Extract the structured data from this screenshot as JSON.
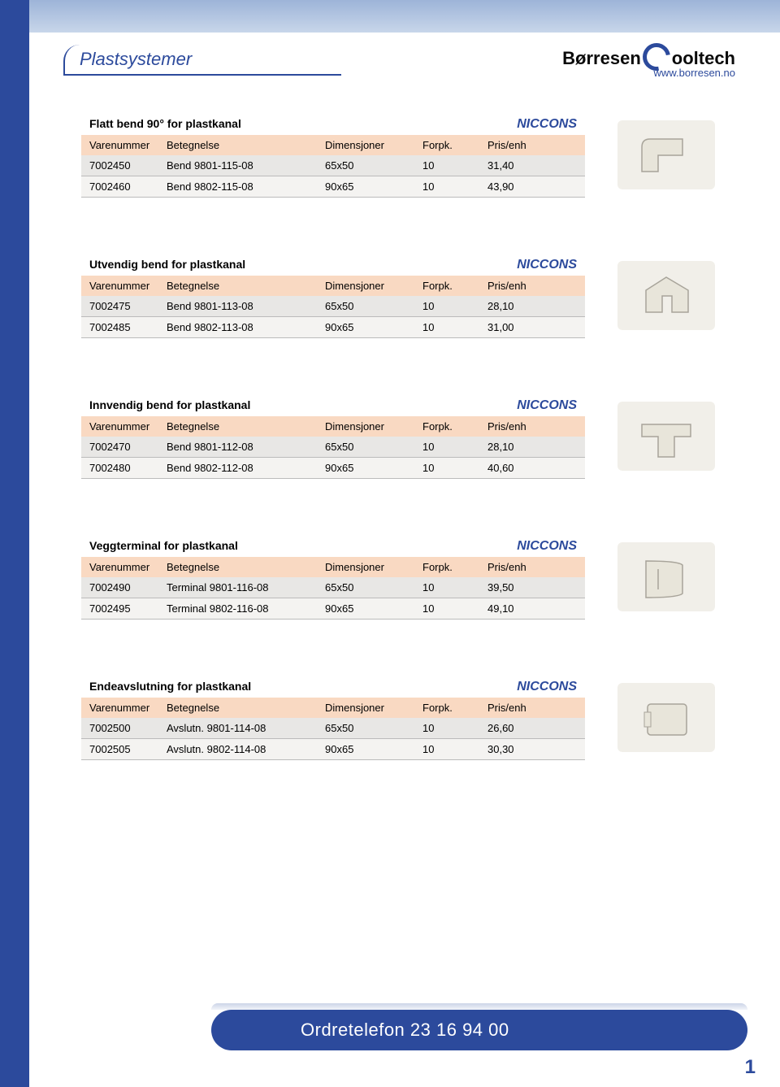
{
  "page": {
    "title": "Plastsystemer",
    "logo_left": "Børresen",
    "logo_right": "ooltech",
    "url": "www.borresen.no",
    "footer": "Ordretelefon 23 16 94 00",
    "page_number": "1"
  },
  "colors": {
    "accent": "#2c4a9c",
    "header_row": "#f9d9c2",
    "row_odd": "#e8e7e5",
    "row_even": "#f4f3f1"
  },
  "table_headers": {
    "varenummer": "Varenummer",
    "betegnelse": "Betegnelse",
    "dimensjoner": "Dimensjoner",
    "forpk": "Forpk.",
    "pris": "Pris/enh"
  },
  "sections": [
    {
      "title": "Flatt bend 90° for plastkanal",
      "brand": "NICCONS",
      "img_name": "flat-bend-icon",
      "rows": [
        [
          "7002450",
          "Bend 9801-115-08",
          "65x50",
          "10",
          "31,40"
        ],
        [
          "7002460",
          "Bend 9802-115-08",
          "90x65",
          "10",
          "43,90"
        ]
      ]
    },
    {
      "title": "Utvendig bend for plastkanal",
      "brand": "NICCONS",
      "img_name": "external-bend-icon",
      "rows": [
        [
          "7002475",
          "Bend 9801-113-08",
          "65x50",
          "10",
          "28,10"
        ],
        [
          "7002485",
          "Bend 9802-113-08",
          "90x65",
          "10",
          "31,00"
        ]
      ]
    },
    {
      "title": "Innvendig bend for plastkanal",
      "brand": "NICCONS",
      "img_name": "internal-bend-icon",
      "rows": [
        [
          "7002470",
          "Bend 9801-112-08",
          "65x50",
          "10",
          "28,10"
        ],
        [
          "7002480",
          "Bend 9802-112-08",
          "90x65",
          "10",
          "40,60"
        ]
      ]
    },
    {
      "title": "Veggterminal for plastkanal",
      "brand": "NICCONS",
      "img_name": "wall-terminal-icon",
      "rows": [
        [
          "7002490",
          "Terminal 9801-116-08",
          "65x50",
          "10",
          "39,50"
        ],
        [
          "7002495",
          "Terminal 9802-116-08",
          "90x65",
          "10",
          "49,10"
        ]
      ]
    },
    {
      "title": "Endeavslutning for plastkanal",
      "brand": "NICCONS",
      "img_name": "end-cap-icon",
      "rows": [
        [
          "7002500",
          "Avslutn. 9801-114-08",
          "65x50",
          "10",
          "26,60"
        ],
        [
          "7002505",
          "Avslutn. 9802-114-08",
          "90x65",
          "10",
          "30,30"
        ]
      ]
    }
  ]
}
